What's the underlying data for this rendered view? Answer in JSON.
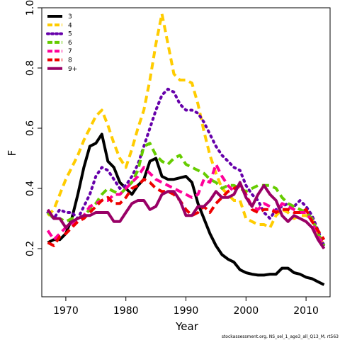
{
  "chart_data": {
    "type": "line",
    "xlabel": "Year",
    "ylabel": "F",
    "xlim": [
      1966,
      2014
    ],
    "ylim": [
      0.04,
      1.0
    ],
    "x_ticks": [
      1970,
      1980,
      1990,
      2000,
      2010
    ],
    "y_ticks": [
      0.2,
      0.4,
      0.6,
      0.8,
      1.0
    ],
    "x_tick_labels": [
      "1970",
      "1980",
      "1990",
      "2000",
      "2010"
    ],
    "y_tick_labels": [
      "0.2",
      "0.4",
      "0.6",
      "0.8",
      "1.0"
    ],
    "legend_position": "top-left",
    "footnote": "stockassessment.org, NS_sel_1_age3_all_Q13_M, rt563",
    "x": [
      1967,
      1968,
      1969,
      1970,
      1971,
      1972,
      1973,
      1974,
      1975,
      1976,
      1977,
      1978,
      1979,
      1980,
      1981,
      1982,
      1983,
      1984,
      1985,
      1986,
      1987,
      1988,
      1989,
      1990,
      1991,
      1992,
      1993,
      1994,
      1995,
      1996,
      1997,
      1998,
      1999,
      2000,
      2001,
      2002,
      2003,
      2004,
      2005,
      2006,
      2007,
      2008,
      2009,
      2010,
      2011,
      2012,
      2013
    ],
    "series": [
      {
        "name": "3",
        "color": "#000000",
        "dash": "solid",
        "values": [
          0.22,
          0.23,
          0.23,
          0.25,
          0.3,
          0.38,
          0.47,
          0.54,
          0.55,
          0.58,
          0.49,
          0.47,
          0.42,
          0.4,
          0.38,
          0.41,
          0.43,
          0.49,
          0.5,
          0.44,
          0.43,
          0.43,
          0.435,
          0.44,
          0.42,
          0.35,
          0.3,
          0.25,
          0.21,
          0.18,
          0.165,
          0.155,
          0.13,
          0.12,
          0.115,
          0.112,
          0.112,
          0.115,
          0.115,
          0.135,
          0.135,
          0.12,
          0.115,
          0.105,
          0.1,
          0.09,
          0.08
        ]
      },
      {
        "name": "4",
        "color": "#ffcc00",
        "dash": "dashed",
        "values": [
          0.31,
          0.33,
          0.38,
          0.43,
          0.47,
          0.51,
          0.56,
          0.6,
          0.64,
          0.66,
          0.61,
          0.55,
          0.5,
          0.47,
          0.53,
          0.6,
          0.66,
          0.76,
          0.88,
          0.98,
          0.88,
          0.78,
          0.76,
          0.76,
          0.75,
          0.68,
          0.59,
          0.51,
          0.45,
          0.4,
          0.38,
          0.36,
          0.36,
          0.3,
          0.29,
          0.28,
          0.28,
          0.27,
          0.31,
          0.33,
          0.32,
          0.3,
          0.31,
          0.31,
          0.3,
          0.25,
          0.21
        ]
      },
      {
        "name": "5",
        "color": "#6600aa",
        "dash": "dotted",
        "values": [
          0.32,
          0.3,
          0.33,
          0.32,
          0.32,
          0.3,
          0.34,
          0.38,
          0.44,
          0.47,
          0.46,
          0.43,
          0.4,
          0.41,
          0.44,
          0.48,
          0.54,
          0.6,
          0.66,
          0.71,
          0.73,
          0.72,
          0.68,
          0.66,
          0.66,
          0.65,
          0.62,
          0.58,
          0.54,
          0.51,
          0.49,
          0.47,
          0.46,
          0.41,
          0.38,
          0.36,
          0.32,
          0.3,
          0.33,
          0.34,
          0.35,
          0.34,
          0.36,
          0.34,
          0.31,
          0.26,
          0.21
        ]
      },
      {
        "name": "6",
        "color": "#66cc00",
        "dash": "dashed",
        "values": [
          0.32,
          0.3,
          0.3,
          0.29,
          0.3,
          0.3,
          0.31,
          0.33,
          0.35,
          0.38,
          0.4,
          0.39,
          0.38,
          0.4,
          0.42,
          0.46,
          0.54,
          0.55,
          0.51,
          0.49,
          0.48,
          0.5,
          0.51,
          0.48,
          0.47,
          0.46,
          0.45,
          0.43,
          0.42,
          0.4,
          0.41,
          0.41,
          0.4,
          0.39,
          0.4,
          0.41,
          0.41,
          0.41,
          0.4,
          0.37,
          0.35,
          0.34,
          0.33,
          0.32,
          0.3,
          0.25,
          0.21
        ]
      },
      {
        "name": "7",
        "color": "#ff0099",
        "dash": "dashed",
        "values": [
          0.26,
          0.23,
          0.25,
          0.27,
          0.28,
          0.29,
          0.31,
          0.34,
          0.35,
          0.36,
          0.36,
          0.38,
          0.38,
          0.4,
          0.42,
          0.44,
          0.47,
          0.45,
          0.43,
          0.42,
          0.41,
          0.4,
          0.39,
          0.38,
          0.37,
          0.38,
          0.43,
          0.42,
          0.48,
          0.44,
          0.41,
          0.39,
          0.41,
          0.38,
          0.34,
          0.33,
          0.35,
          0.34,
          0.32,
          0.35,
          0.34,
          0.33,
          0.32,
          0.32,
          0.29,
          0.24,
          0.21
        ]
      },
      {
        "name": "8",
        "color": "#ee0000",
        "dash": "dashed",
        "values": [
          0.22,
          0.21,
          0.24,
          0.25,
          0.27,
          0.29,
          0.3,
          0.32,
          0.34,
          0.36,
          0.37,
          0.35,
          0.35,
          0.37,
          0.4,
          0.41,
          0.43,
          0.42,
          0.4,
          0.39,
          0.39,
          0.38,
          0.36,
          0.33,
          0.31,
          0.32,
          0.34,
          0.32,
          0.35,
          0.37,
          0.39,
          0.4,
          0.41,
          0.38,
          0.33,
          0.32,
          0.33,
          0.33,
          0.32,
          0.33,
          0.33,
          0.32,
          0.32,
          0.33,
          0.29,
          0.26,
          0.23
        ]
      },
      {
        "name": "9+",
        "color": "#990066",
        "dash": "solid",
        "values": [
          0.33,
          0.3,
          0.3,
          0.27,
          0.29,
          0.3,
          0.31,
          0.31,
          0.32,
          0.32,
          0.32,
          0.29,
          0.29,
          0.32,
          0.35,
          0.36,
          0.36,
          0.33,
          0.34,
          0.38,
          0.39,
          0.39,
          0.36,
          0.31,
          0.31,
          0.34,
          0.34,
          0.36,
          0.39,
          0.37,
          0.37,
          0.38,
          0.42,
          0.37,
          0.34,
          0.38,
          0.41,
          0.38,
          0.36,
          0.31,
          0.29,
          0.31,
          0.3,
          0.29,
          0.27,
          0.23,
          0.2
        ]
      }
    ]
  }
}
